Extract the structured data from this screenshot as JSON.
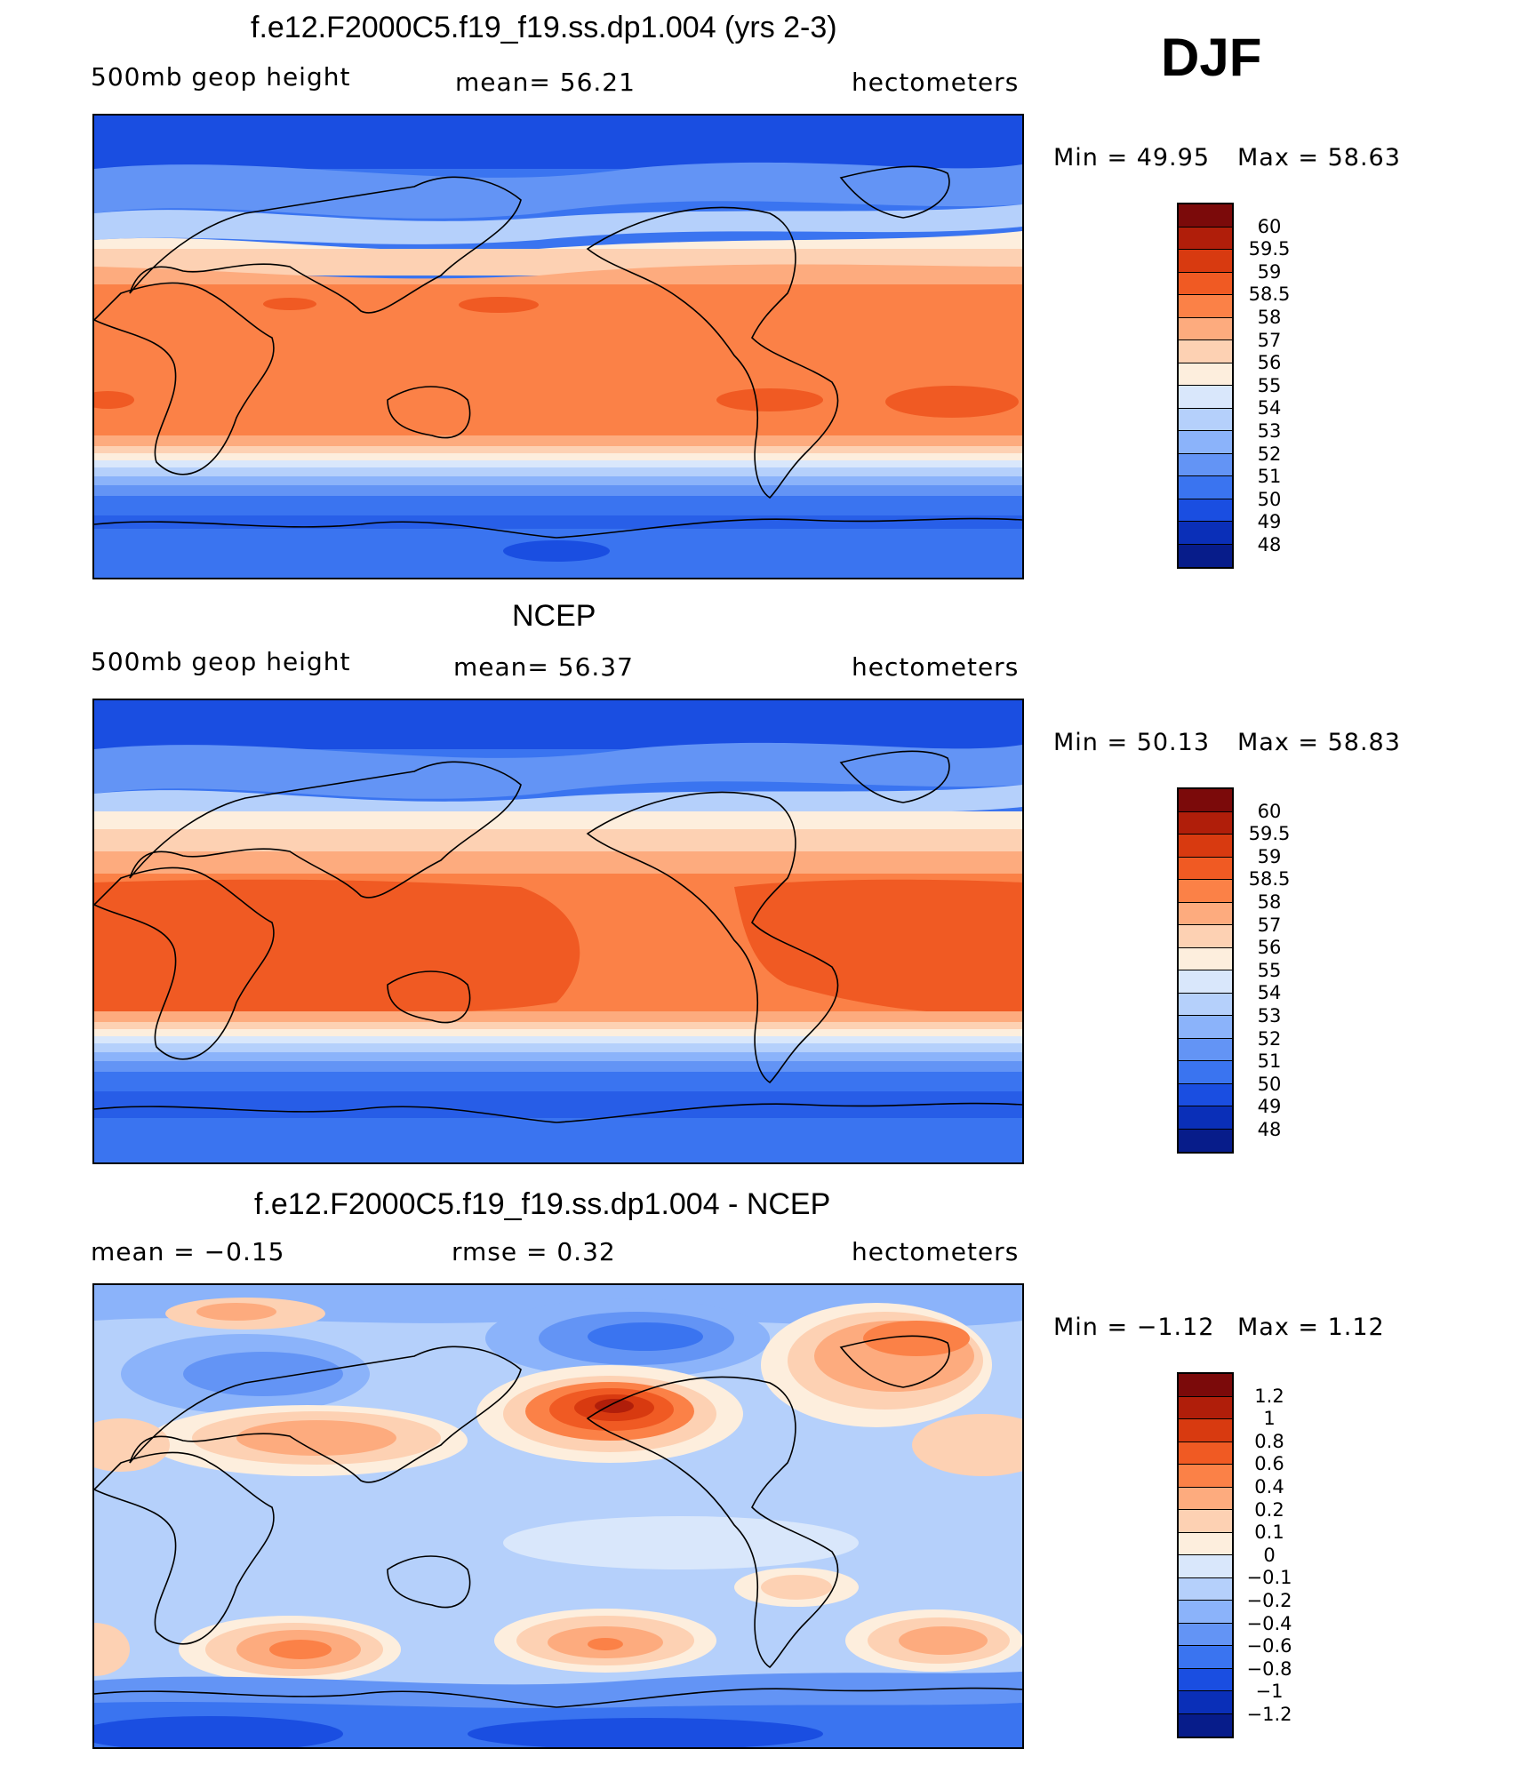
{
  "season": "DJF",
  "panels": [
    {
      "id": "model",
      "title": "f.e12.F2000C5.f19_f19.ss.dp1.004 (yrs 2-3)",
      "left_text": "500mb  geop  height",
      "mid_text": "mean=   56.21",
      "right_text": "hectometers",
      "min_text": "Min  =    49.95",
      "max_text": "Max  =    58.63",
      "min_value": 49.95,
      "max_value": 58.63,
      "mean_value": 56.21,
      "colorbar_labels": [
        "60",
        "59.5",
        "59",
        "58.5",
        "58",
        "57",
        "56",
        "55",
        "54",
        "53",
        "52",
        "51",
        "50",
        "49",
        "48"
      ],
      "colorbar_colors": [
        "#7b0a0a",
        "#b01e0a",
        "#d83a10",
        "#f05a23",
        "#fb8147",
        "#fdab7e",
        "#fdd1b3",
        "#fdeedd",
        "#d9e7fb",
        "#b5d0fb",
        "#8bb3fa",
        "#6394f5",
        "#3a74f0",
        "#1a4ee1",
        "#0a2fb8",
        "#071c8a"
      ]
    },
    {
      "id": "obs",
      "title": "NCEP",
      "left_text": "500mb  geop  height",
      "mid_text": "mean=   56.37",
      "right_text": "hectometers",
      "min_text": "Min  =    50.13",
      "max_text": "Max  =    58.83",
      "min_value": 50.13,
      "max_value": 58.83,
      "mean_value": 56.37,
      "colorbar_labels": [
        "60",
        "59.5",
        "59",
        "58.5",
        "58",
        "57",
        "56",
        "55",
        "54",
        "53",
        "52",
        "51",
        "50",
        "49",
        "48"
      ],
      "colorbar_colors": [
        "#7b0a0a",
        "#b01e0a",
        "#d83a10",
        "#f05a23",
        "#fb8147",
        "#fdab7e",
        "#fdd1b3",
        "#fdeedd",
        "#d9e7fb",
        "#b5d0fb",
        "#8bb3fa",
        "#6394f5",
        "#3a74f0",
        "#1a4ee1",
        "#0a2fb8",
        "#071c8a"
      ]
    },
    {
      "id": "diff",
      "title": "f.e12.F2000C5.f19_f19.ss.dp1.004 - NCEP",
      "left_text": "mean  =    −0.15",
      "mid_text": "rmse  =     0.32",
      "right_text": "hectometers",
      "min_text": "Min  =    −1.12",
      "max_text": "Max  =     1.12",
      "min_value": -1.12,
      "max_value": 1.12,
      "mean_value": -0.15,
      "rmse_value": 0.32,
      "colorbar_labels": [
        "1.2",
        "1",
        "0.8",
        "0.6",
        "0.4",
        "0.2",
        "0.1",
        "0",
        "−0.1",
        "−0.2",
        "−0.4",
        "−0.6",
        "−0.8",
        "−1",
        "−1.2"
      ],
      "colorbar_colors": [
        "#7b0a0a",
        "#b01e0a",
        "#d83a10",
        "#f05a23",
        "#fb8147",
        "#fdab7e",
        "#fdd1b3",
        "#fdeedd",
        "#d9e7fb",
        "#b5d0fb",
        "#8bb3fa",
        "#6394f5",
        "#3a74f0",
        "#1a4ee1",
        "#0a2fb8",
        "#071c8a"
      ]
    }
  ]
}
